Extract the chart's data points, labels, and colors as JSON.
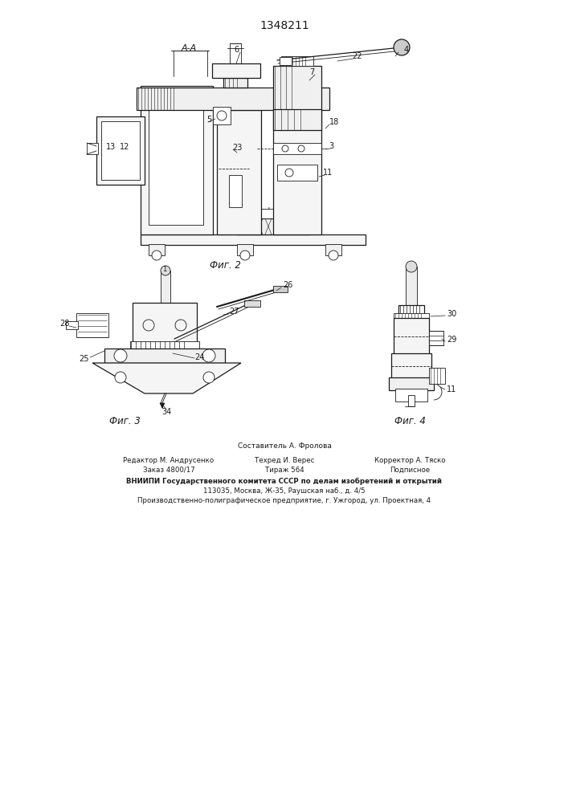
{
  "patent_number": "1348211",
  "fig2_label": "Фиг. 2",
  "fig3_label": "Фиг. 3",
  "fig4_label": "Фиг. 4",
  "section_label": "А-А",
  "background_color": "#ffffff",
  "line_color": "#1a1a1a",
  "footer_col1_line1": "Редактор М. Андрусенко",
  "footer_col1_line2": "Заказ 4800/17",
  "footer_col2_line1": "Техред И. Верес",
  "footer_col2_line2": "Тираж 564",
  "footer_col3_line1": "Корректор А. Тяско",
  "footer_col3_line2": "Подписное",
  "footer_top": "Составитель А. Фролова",
  "footer_vniipи": "ВНИИПИ Государственного комитета СССР по делам изобретений и открытий",
  "footer_addr1": "113035, Москва, Ж-35, Раушская наб., д. 4/5",
  "footer_addr2": "Производственно-полиграфическое предприятие, г. Ужгород, ул. Проектная, 4"
}
